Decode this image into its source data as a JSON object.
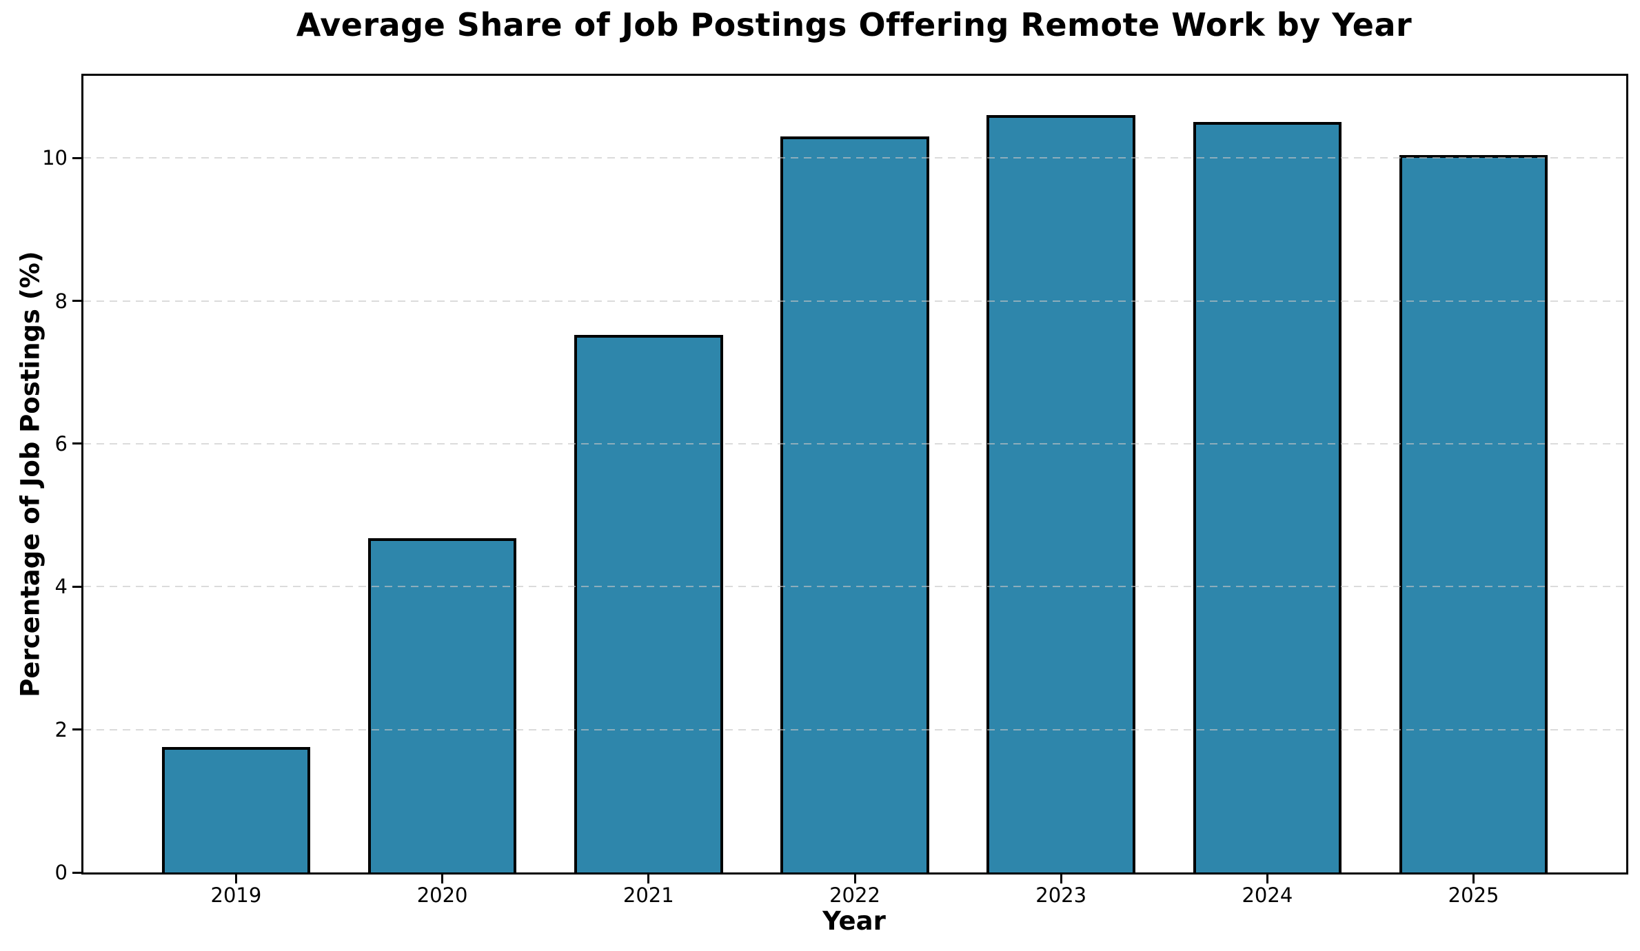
{
  "chart_data": {
    "type": "bar",
    "title": "Average Share of Job Postings Offering Remote Work by Year",
    "xlabel": "Year",
    "ylabel": "Percentage of Job Postings (%)",
    "categories": [
      "2019",
      "2020",
      "2021",
      "2022",
      "2023",
      "2024",
      "2025"
    ],
    "values": [
      1.76,
      4.68,
      7.52,
      10.3,
      10.6,
      10.5,
      10.04
    ],
    "ylim": [
      0,
      11.15
    ],
    "yticks": [
      0,
      2,
      4,
      6,
      8,
      10
    ],
    "grid": {
      "axis": "y",
      "style": "dashed",
      "drawn_over_bars": true
    },
    "legend": null,
    "colors": {
      "bar_fill": "#2E86AB",
      "bar_edge": "#000000",
      "grid": "#C5C5C5",
      "background": "#FFFFFF",
      "text": "#000000"
    }
  }
}
